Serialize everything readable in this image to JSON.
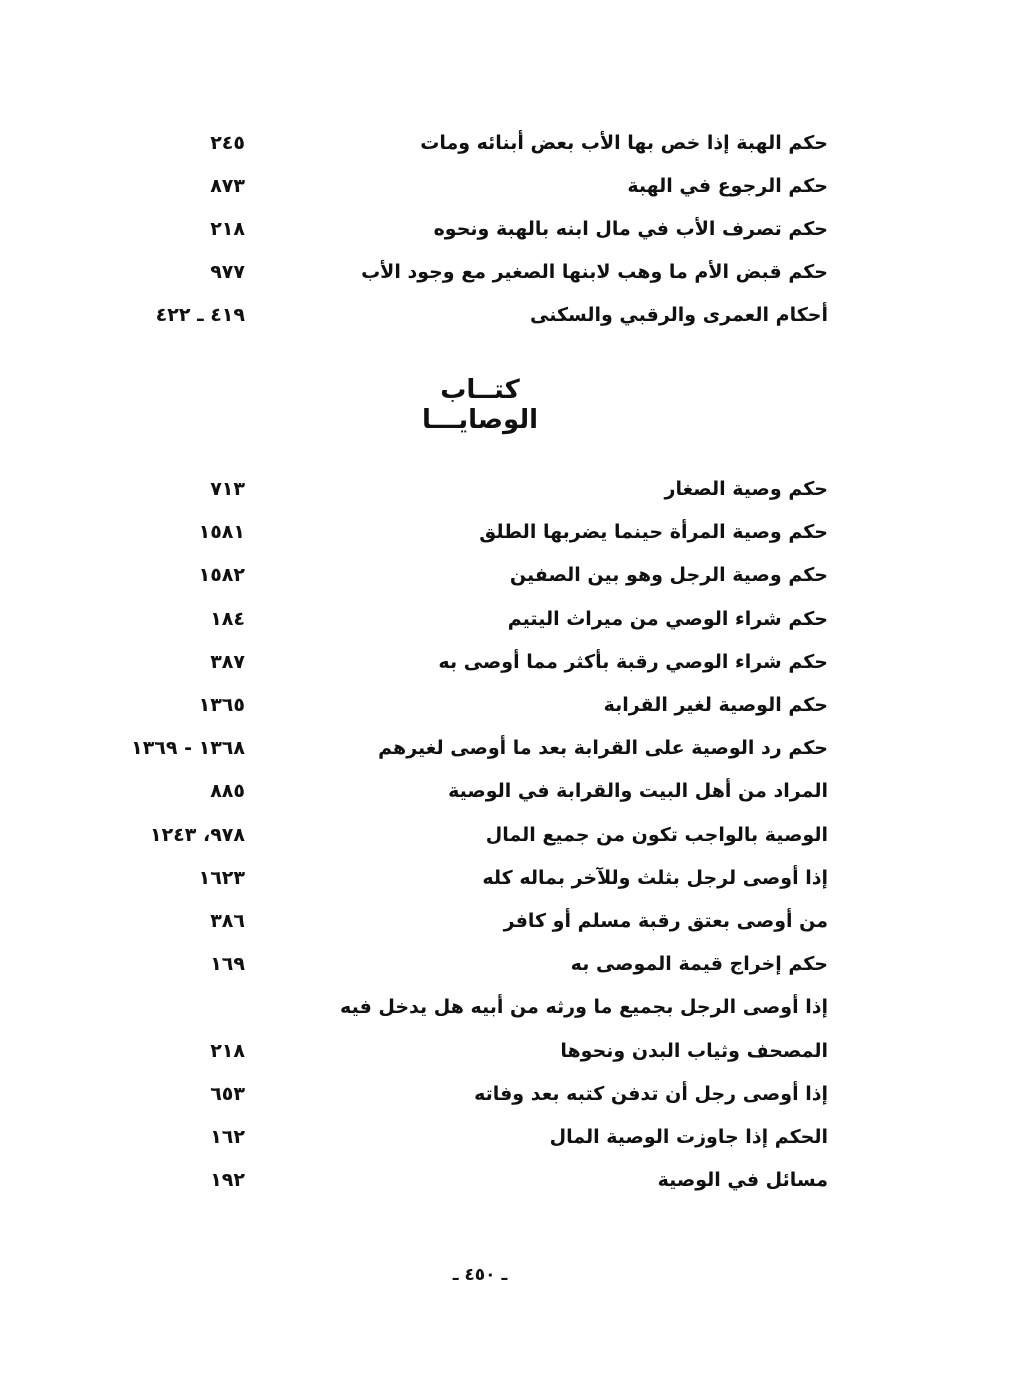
{
  "section_1": {
    "entries": [
      {
        "topic": "حكم الهبة إذا خص بها الأب بعض أبنائه ومات",
        "pages": "٢٤٥"
      },
      {
        "topic": "حكم الرجوع في الهبة",
        "pages": "٨٧٣"
      },
      {
        "topic": "حكم تصرف الأب في مال ابنه بالهبة ونحوه",
        "pages": "٢١٨"
      },
      {
        "topic": "حكم قبض الأم ما وهب لابنها الصغير مع وجود الأب",
        "pages": "٩٧٧"
      },
      {
        "topic": "أحكام العمرى والرقبي والسكنى",
        "pages": "٤١٩ ـ ٤٢٢"
      }
    ]
  },
  "section_2": {
    "title": "كتــاب الوصايـــا",
    "entries": [
      {
        "topic": "حكم وصية الصغار",
        "pages": "٧١٣"
      },
      {
        "topic": "حكم وصية المرأة حينما يضربها الطلق",
        "pages": "١٥٨١"
      },
      {
        "topic": "حكم وصية الرجل وهو بين الصفين",
        "pages": "١٥٨٢"
      },
      {
        "topic": "حكم شراء الوصي من ميراث اليتيم",
        "pages": "١٨٤"
      },
      {
        "topic": "حكم شراء الوصي رقبة بأكثر مما أوصى به",
        "pages": "٣٨٧"
      },
      {
        "topic": "حكم الوصية لغير القرابة",
        "pages": "١٣٦٥"
      },
      {
        "topic": "حكم رد الوصية على القرابة بعد ما أوصى لغيرهم",
        "pages": "١٣٦٨ - ١٣٦٩"
      },
      {
        "topic": "المراد من أهل البيت والقرابة في الوصية",
        "pages": "٨٨٥"
      },
      {
        "topic": "الوصية بالواجب تكون من جميع المال",
        "pages": "٩٧٨، ١٢٤٣"
      },
      {
        "topic": "إذا أوصى لرجل بثلث وللآخر بماله كله",
        "pages": "١٦٢٣"
      },
      {
        "topic": "من أوصى بعتق رقبة مسلم أو كافر",
        "pages": "٣٨٦"
      },
      {
        "topic": "حكم إخراج قيمة الموصى به",
        "pages": "١٦٩"
      },
      {
        "topic": "إذا أوصى الرجل بجميع ما ورثه من أبيه هل يدخل فيه",
        "pages": ""
      },
      {
        "topic": "المصحف وثياب البدن ونحوها",
        "pages": "٢١٨"
      },
      {
        "topic": "إذا أوصى رجل أن تدفن كتبه بعد وفاته",
        "pages": "٦٥٣"
      },
      {
        "topic": "الحكم إذا جاوزت الوصية المال",
        "pages": "١٦٢"
      },
      {
        "topic": "مسائل في الوصية",
        "pages": "١٩٢"
      }
    ]
  },
  "footer": {
    "page_number": "ـ ٤٥٠ ـ"
  }
}
